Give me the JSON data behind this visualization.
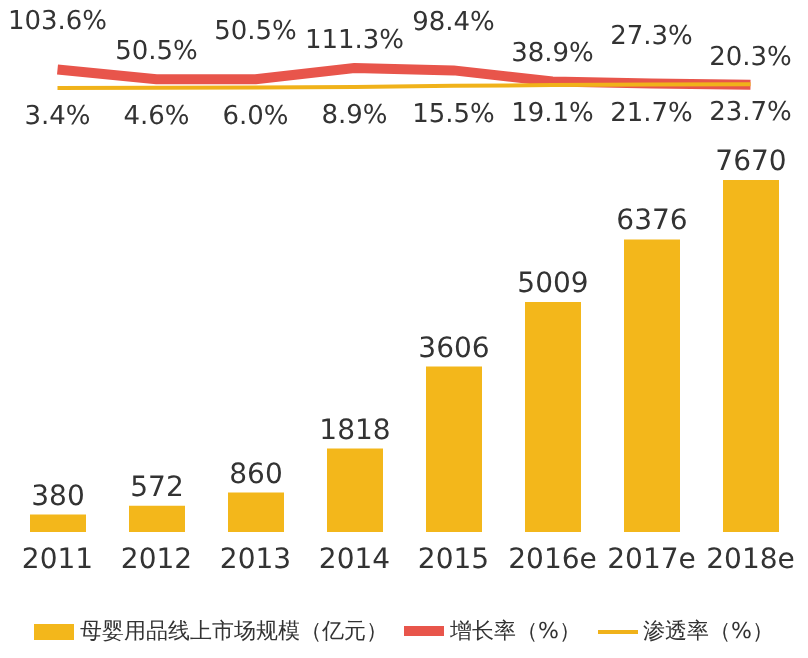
{
  "chart_data": [
    {
      "type": "line",
      "categories": [
        null,
        null,
        null,
        null,
        null,
        null,
        null,
        null
      ],
      "legend": "bottom",
      "marker": "none",
      "series": [
        {
          "name": "增长率（%）",
          "color": "#e8554b",
          "values": [
            103.6,
            50.5,
            50.5,
            111.3,
            98.4,
            38.9,
            27.3,
            20.3
          ],
          "value_labels": [
            "103.6%",
            "50.5%",
            "50.5%",
            "111.3%",
            "98.4%",
            "38.9%",
            "27.3%",
            "20.3%"
          ]
        },
        {
          "name": "渗透率（%）",
          "color": "#f0b21a",
          "values": [
            3.4,
            4.6,
            6.0,
            8.9,
            15.5,
            19.1,
            21.7,
            23.7
          ],
          "value_labels": [
            "3.4%",
            "4.6%",
            "6.0%",
            "8.9%",
            "15.5%",
            "19.1%",
            "21.7%",
            "23.7%"
          ]
        }
      ]
    },
    {
      "type": "bar",
      "categories": [
        "2011",
        "2012",
        "2013",
        "2014",
        "2015",
        "2016e",
        "2017e",
        "2018e"
      ],
      "data_labels": true,
      "legend": "bottom",
      "series": [
        {
          "name": "母婴用品线上市场规模（亿元）",
          "type": "bar",
          "color": "#f3b71b",
          "values": [
            380,
            572,
            860,
            1818,
            3606,
            5009,
            6376,
            7670
          ]
        }
      ]
    }
  ]
}
